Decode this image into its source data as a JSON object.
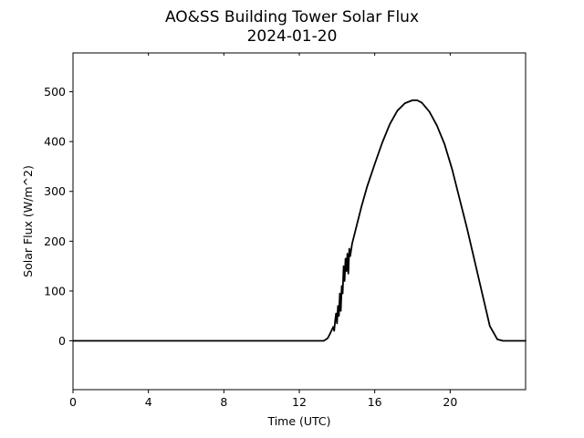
{
  "chart_data": {
    "type": "line",
    "title": "AO&SS Building Tower Solar Flux",
    "subtitle": "2024-01-20",
    "xlabel": "Time (UTC)",
    "ylabel": "Solar Flux (W/m^2)",
    "xlim": [
      0,
      24
    ],
    "ylim": [
      -98,
      578
    ],
    "xticks": [
      0,
      4,
      8,
      12,
      16,
      20
    ],
    "yticks": [
      0,
      100,
      200,
      300,
      400,
      500
    ],
    "grid": false,
    "legend": "none",
    "line_color": "#000000",
    "series": [
      {
        "x": [
          0,
          2,
          4,
          6,
          8,
          10,
          12,
          13.0,
          13.3,
          13.5,
          13.6,
          13.7,
          13.8,
          13.85,
          13.9,
          13.95,
          14.0,
          14.05,
          14.1,
          14.15,
          14.2,
          14.25,
          14.3,
          14.35,
          14.4,
          14.45,
          14.5,
          14.55,
          14.6,
          14.65,
          14.7,
          14.8,
          15.0,
          15.3,
          15.6,
          16.0,
          16.4,
          16.8,
          17.2,
          17.6,
          18.0,
          18.25,
          18.5,
          18.9,
          19.3,
          19.7,
          20.1,
          20.5,
          20.9,
          21.3,
          21.7,
          22.1,
          22.5,
          22.8,
          22.95,
          23.1,
          23.4,
          24.0
        ],
        "y": [
          0,
          0,
          0,
          0,
          0,
          0,
          0,
          0,
          0,
          5,
          12,
          20,
          28,
          20,
          40,
          55,
          35,
          70,
          50,
          95,
          60,
          110,
          95,
          150,
          120,
          165,
          140,
          175,
          135,
          185,
          170,
          195,
          225,
          270,
          310,
          355,
          398,
          435,
          462,
          477,
          483,
          483,
          478,
          460,
          432,
          395,
          345,
          285,
          225,
          160,
          95,
          30,
          3,
          0,
          0,
          0,
          0,
          0
        ]
      }
    ]
  }
}
